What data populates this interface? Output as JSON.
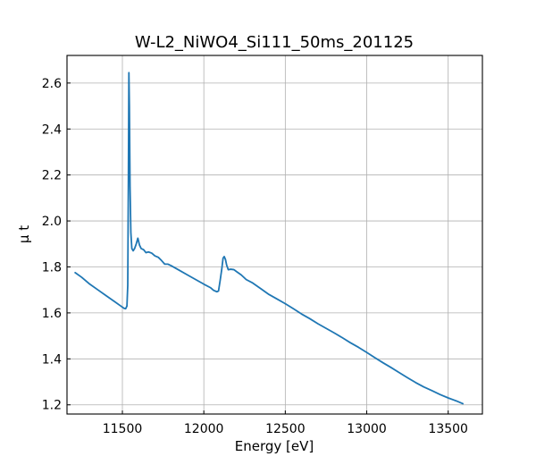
{
  "chart_data": {
    "type": "line",
    "title": "W-L2_NiWO4_Si111_50ms_201125",
    "xlabel": "Energy [eV]",
    "ylabel": "μ t",
    "xlim": [
      11160,
      13710
    ],
    "ylim": [
      1.16,
      2.72
    ],
    "grid": true,
    "x_ticks": [
      11500,
      12000,
      12500,
      13000,
      13500
    ],
    "x_tick_labels": [
      "11500",
      "12000",
      "12500",
      "13000",
      "13500"
    ],
    "y_ticks": [
      1.2,
      1.4,
      1.6,
      1.8,
      2.0,
      2.2,
      2.4,
      2.6
    ],
    "y_tick_labels": [
      "1.2",
      "1.4",
      "1.6",
      "1.8",
      "2.0",
      "2.2",
      "2.4",
      "2.6"
    ],
    "series": [
      {
        "color": "#1f77b4",
        "points": [
          [
            11210,
            1.775
          ],
          [
            11250,
            1.755
          ],
          [
            11300,
            1.725
          ],
          [
            11350,
            1.7
          ],
          [
            11400,
            1.675
          ],
          [
            11450,
            1.65
          ],
          [
            11490,
            1.63
          ],
          [
            11510,
            1.62
          ],
          [
            11520,
            1.618
          ],
          [
            11528,
            1.63
          ],
          [
            11533,
            1.72
          ],
          [
            11537,
            2.2
          ],
          [
            11540,
            2.645
          ],
          [
            11543,
            2.5
          ],
          [
            11547,
            2.15
          ],
          [
            11552,
            1.95
          ],
          [
            11558,
            1.88
          ],
          [
            11566,
            1.87
          ],
          [
            11575,
            1.88
          ],
          [
            11585,
            1.9
          ],
          [
            11595,
            1.925
          ],
          [
            11605,
            1.895
          ],
          [
            11615,
            1.88
          ],
          [
            11630,
            1.875
          ],
          [
            11645,
            1.862
          ],
          [
            11660,
            1.865
          ],
          [
            11680,
            1.86
          ],
          [
            11700,
            1.848
          ],
          [
            11720,
            1.842
          ],
          [
            11740,
            1.828
          ],
          [
            11760,
            1.812
          ],
          [
            11780,
            1.812
          ],
          [
            11800,
            1.805
          ],
          [
            11850,
            1.785
          ],
          [
            11900,
            1.765
          ],
          [
            11950,
            1.745
          ],
          [
            12000,
            1.725
          ],
          [
            12040,
            1.71
          ],
          [
            12060,
            1.698
          ],
          [
            12080,
            1.692
          ],
          [
            12090,
            1.695
          ],
          [
            12100,
            1.74
          ],
          [
            12110,
            1.79
          ],
          [
            12118,
            1.838
          ],
          [
            12125,
            1.845
          ],
          [
            12133,
            1.832
          ],
          [
            12140,
            1.808
          ],
          [
            12150,
            1.788
          ],
          [
            12165,
            1.79
          ],
          [
            12185,
            1.788
          ],
          [
            12200,
            1.78
          ],
          [
            12230,
            1.765
          ],
          [
            12260,
            1.745
          ],
          [
            12300,
            1.73
          ],
          [
            12350,
            1.705
          ],
          [
            12400,
            1.68
          ],
          [
            12450,
            1.66
          ],
          [
            12500,
            1.64
          ],
          [
            12550,
            1.618
          ],
          [
            12600,
            1.595
          ],
          [
            12650,
            1.575
          ],
          [
            12700,
            1.553
          ],
          [
            12750,
            1.533
          ],
          [
            12800,
            1.513
          ],
          [
            12850,
            1.492
          ],
          [
            12900,
            1.47
          ],
          [
            12950,
            1.45
          ],
          [
            13000,
            1.428
          ],
          [
            13050,
            1.405
          ],
          [
            13100,
            1.383
          ],
          [
            13150,
            1.362
          ],
          [
            13200,
            1.34
          ],
          [
            13250,
            1.318
          ],
          [
            13300,
            1.297
          ],
          [
            13350,
            1.278
          ],
          [
            13400,
            1.262
          ],
          [
            13450,
            1.245
          ],
          [
            13500,
            1.23
          ],
          [
            13550,
            1.217
          ],
          [
            13590,
            1.205
          ]
        ]
      }
    ]
  }
}
